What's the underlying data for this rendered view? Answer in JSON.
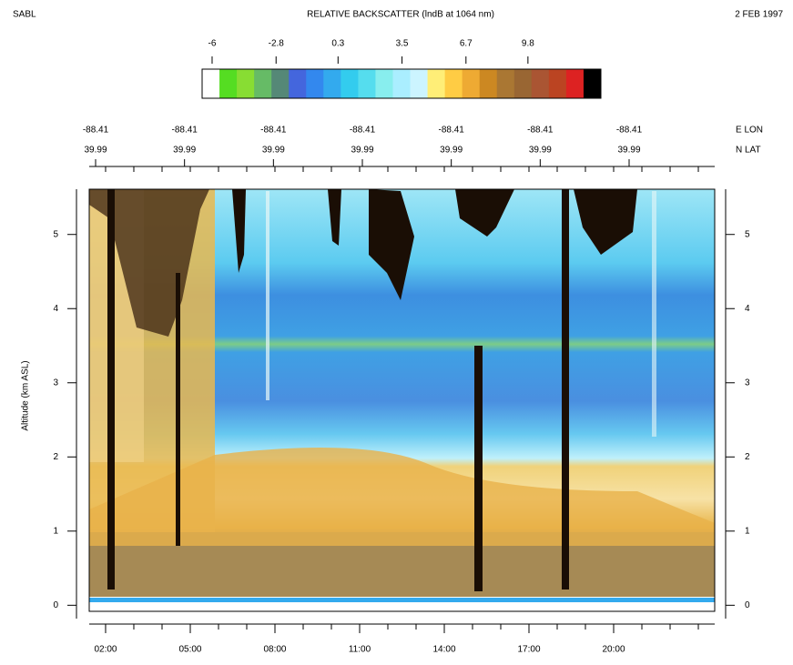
{
  "chart_data": {
    "type": "heatmap",
    "corner_left": "SABL",
    "title": "RELATIVE BACKSCATTER (lndB at 1064 nm)",
    "corner_right": "2 FEB 1997",
    "colorbar": {
      "clim": [
        -6.5,
        13.45
      ],
      "ticks": [
        -6,
        -2.8,
        0.3,
        3.5,
        6.7,
        9.8
      ],
      "colors": [
        "#ffffff",
        "#55dd22",
        "#88dd33",
        "#66bb66",
        "#558877",
        "#4466dd",
        "#3388ee",
        "#33aaee",
        "#33ccee",
        "#55ddee",
        "#88eeee",
        "#aaeeff",
        "#ccf4ff",
        "#ffee77",
        "#ffcc44",
        "#eeaa33",
        "#cc8822",
        "#aa7733",
        "#996633",
        "#aa5533",
        "#bb4422",
        "#dd2222",
        "#000000"
      ]
    },
    "top_axis": {
      "lon_labels": [
        "-88.41",
        "-88.41",
        "-88.41",
        "-88.41",
        "-88.41",
        "-88.41",
        "-88.41"
      ],
      "lat_labels": [
        "39.99",
        "39.99",
        "39.99",
        "39.99",
        "39.99",
        "39.99",
        "39.99"
      ],
      "lon_title": "E LON",
      "lat_title": "N LAT"
    },
    "ylabel": "Altitude (km ASL)",
    "xlim": [
      1.42,
      23.58
    ],
    "xticks": [
      {
        "value": 2,
        "label": "02:00"
      },
      {
        "value": 5,
        "label": "05:00"
      },
      {
        "value": 8,
        "label": "08:00"
      },
      {
        "value": 11,
        "label": "11:00"
      },
      {
        "value": 14,
        "label": "14:00"
      },
      {
        "value": 17,
        "label": "17:00"
      },
      {
        "value": 20,
        "label": "20:00"
      }
    ],
    "ylim": [
      -0.18,
      5.61
    ],
    "yticks": [
      0,
      1,
      2,
      3,
      4,
      5
    ]
  }
}
